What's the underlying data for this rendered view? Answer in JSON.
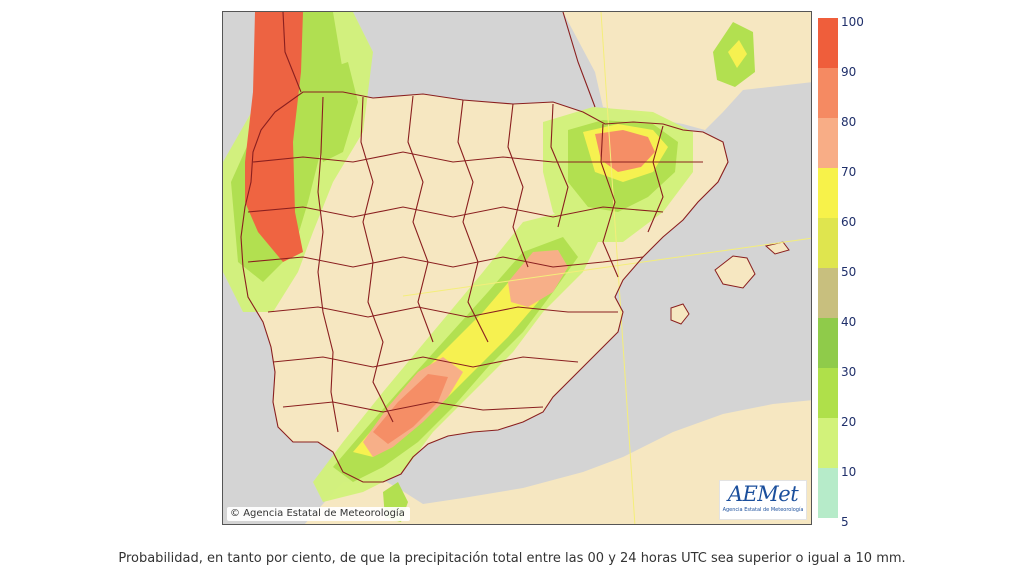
{
  "map": {
    "credit_symbol": "©",
    "credit_text": "Agencia Estatal de Meteorología",
    "logo": {
      "word": "AEMet",
      "subtitle": "Agencia Estatal de Meteorología"
    }
  },
  "legend": {
    "classes": [
      {
        "label": "100",
        "color": "#ef5e3b"
      },
      {
        "label": "90",
        "color": "#f58a62"
      },
      {
        "label": "80",
        "color": "#f8ad86"
      },
      {
        "label": "70",
        "color": "#f7f24a"
      },
      {
        "label": "60",
        "color": "#dfe54e"
      },
      {
        "label": "50",
        "color": "#c8bf7e"
      },
      {
        "label": "40",
        "color": "#8fcb4a"
      },
      {
        "label": "30",
        "color": "#afe04a"
      },
      {
        "label": "20",
        "color": "#d2f27a"
      },
      {
        "label": "10",
        "color": "#b6ebc9"
      },
      {
        "label": "5",
        "color": "#ffffff"
      }
    ]
  },
  "colors": {
    "sea": "#d4d4d4",
    "land": "#f6e7c1",
    "border": "#8a1f1f",
    "graticule": "#f4ee7a"
  },
  "caption": "Probabilidad, en tanto por ciento, de que la precipitación total entre las 00 y 24 horas UTC sea superior o igual a 10 mm."
}
